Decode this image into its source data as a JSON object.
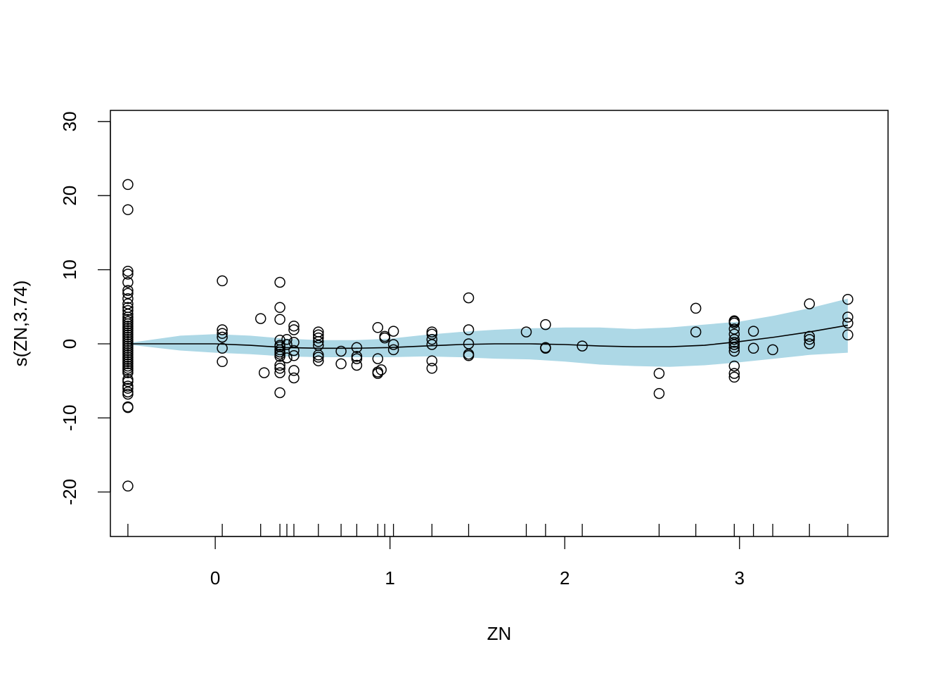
{
  "chart_data": {
    "type": "scatter",
    "title": "",
    "xlabel": "ZN",
    "ylabel": "s(ZN,3.74)",
    "xlim": [
      -0.6,
      3.85
    ],
    "ylim": [
      -26,
      31.5
    ],
    "x_ticks": [
      0,
      1,
      2,
      3
    ],
    "y_ticks": [
      -20,
      -10,
      0,
      10,
      20,
      30
    ],
    "grid": false,
    "legend": "none",
    "colors": {
      "band": "#add8e6",
      "line": "#000000",
      "points": "#000000"
    },
    "smooth_curve": {
      "x": [
        -0.5,
        -0.2,
        0.0,
        0.2,
        0.4,
        0.6,
        0.8,
        1.0,
        1.2,
        1.4,
        1.6,
        1.8,
        2.0,
        2.2,
        2.4,
        2.6,
        2.8,
        3.0,
        3.2,
        3.4,
        3.62
      ],
      "y": [
        0.0,
        0.0,
        0.0,
        -0.2,
        -0.5,
        -0.6,
        -0.6,
        -0.5,
        -0.3,
        -0.1,
        0.0,
        0.0,
        -0.1,
        -0.3,
        -0.4,
        -0.4,
        -0.2,
        0.3,
        0.9,
        1.6,
        2.5
      ]
    },
    "confidence_band": {
      "x": [
        -0.5,
        -0.2,
        0.0,
        0.2,
        0.4,
        0.6,
        0.8,
        1.0,
        1.2,
        1.4,
        1.6,
        1.8,
        2.0,
        2.2,
        2.4,
        2.6,
        2.8,
        3.0,
        3.2,
        3.4,
        3.62
      ],
      "upper": [
        0.1,
        1.1,
        1.3,
        1.1,
        0.7,
        0.5,
        0.5,
        0.7,
        1.2,
        1.6,
        1.9,
        2.1,
        2.2,
        2.2,
        2.0,
        2.2,
        2.6,
        3.0,
        3.8,
        4.8,
        6.1
      ],
      "lower": [
        -0.1,
        -0.9,
        -1.2,
        -1.4,
        -1.7,
        -1.8,
        -1.8,
        -1.8,
        -1.7,
        -1.8,
        -2.0,
        -2.1,
        -2.4,
        -2.8,
        -3.0,
        -3.1,
        -2.9,
        -2.5,
        -2.0,
        -1.5,
        -1.2
      ]
    },
    "rug_x": [
      -0.5,
      0.04,
      0.26,
      0.37,
      0.41,
      0.45,
      0.59,
      0.72,
      0.81,
      0.93,
      0.97,
      1.02,
      1.24,
      1.45,
      1.78,
      1.89,
      2.1,
      2.54,
      2.75,
      2.97,
      3.08,
      3.19,
      3.4,
      3.62
    ],
    "points": {
      "x": [
        -0.5,
        -0.5,
        -0.5,
        -0.5,
        -0.5,
        -0.5,
        -0.5,
        -0.5,
        -0.5,
        -0.5,
        -0.5,
        -0.5,
        -0.5,
        -0.5,
        -0.5,
        -0.5,
        -0.5,
        -0.5,
        -0.5,
        -0.5,
        -0.5,
        -0.5,
        -0.5,
        -0.5,
        -0.5,
        -0.5,
        -0.5,
        -0.5,
        -0.5,
        -0.5,
        -0.5,
        -0.5,
        -0.5,
        -0.5,
        -0.5,
        -0.5,
        -0.5,
        -0.5,
        -0.5,
        -0.5,
        -0.5,
        -0.5,
        -0.5,
        -0.5,
        -0.5,
        -0.5,
        -0.5,
        0.04,
        0.04,
        0.04,
        0.04,
        0.04,
        0.04,
        0.26,
        0.28,
        0.37,
        0.37,
        0.37,
        0.37,
        0.37,
        0.37,
        0.37,
        0.37,
        0.37,
        0.37,
        0.37,
        0.37,
        0.37,
        0.37,
        0.41,
        0.41,
        0.41,
        0.45,
        0.45,
        0.45,
        0.45,
        0.45,
        0.45,
        0.45,
        0.59,
        0.59,
        0.59,
        0.59,
        0.59,
        0.59,
        0.59,
        0.59,
        0.72,
        0.72,
        0.81,
        0.81,
        0.81,
        0.81,
        0.93,
        0.93,
        0.93,
        0.93,
        0.95,
        0.97,
        0.97,
        1.02,
        1.02,
        1.02,
        1.24,
        1.24,
        1.24,
        1.24,
        1.24,
        1.24,
        1.45,
        1.45,
        1.45,
        1.45,
        1.45,
        1.78,
        1.89,
        1.89,
        1.89,
        2.1,
        2.54,
        2.54,
        2.75,
        2.75,
        2.97,
        2.97,
        2.97,
        2.97,
        2.97,
        2.97,
        2.97,
        2.97,
        2.97,
        2.97,
        2.97,
        2.97,
        2.97,
        3.08,
        3.08,
        3.19,
        3.4,
        3.4,
        3.4,
        3.4,
        3.62,
        3.62,
        3.62,
        3.62
      ],
      "y": [
        21.5,
        18.1,
        9.8,
        9.4,
        8.3,
        7.2,
        6.8,
        6.1,
        5.4,
        4.9,
        4.5,
        4.0,
        3.6,
        3.3,
        3.0,
        2.7,
        2.4,
        2.1,
        1.8,
        1.5,
        1.2,
        0.9,
        0.6,
        0.3,
        0.0,
        -0.3,
        -0.6,
        -0.9,
        -1.2,
        -1.5,
        -1.8,
        -2.1,
        -2.4,
        -2.7,
        -3.0,
        -3.3,
        -3.6,
        -3.9,
        -4.8,
        -5.1,
        -5.7,
        -6.0,
        -6.5,
        -6.8,
        -8.5,
        -8.6,
        -19.2,
        8.5,
        1.9,
        1.4,
        0.9,
        -0.6,
        -2.4,
        3.4,
        -3.9,
        8.3,
        4.9,
        3.3,
        0.5,
        -0.2,
        -0.4,
        -0.8,
        -1.1,
        -1.4,
        -1.7,
        -2.9,
        -3.3,
        -3.9,
        -6.6,
        0.6,
        -0.1,
        -1.9,
        2.4,
        1.9,
        0.2,
        -0.9,
        -1.6,
        -3.6,
        -4.6,
        1.6,
        1.2,
        0.8,
        0.3,
        -0.2,
        -1.5,
        -1.8,
        -2.3,
        -1.0,
        -2.7,
        -0.5,
        -1.7,
        -2.0,
        -2.9,
        2.2,
        -2.0,
        -3.8,
        -4.0,
        -3.5,
        1.0,
        0.8,
        1.7,
        -0.1,
        -0.8,
        1.6,
        1.3,
        0.6,
        -0.1,
        -2.3,
        -3.3,
        6.2,
        1.9,
        0.0,
        -1.4,
        -1.6,
        1.6,
        2.6,
        -0.5,
        -0.6,
        -0.3,
        -4.0,
        -6.7,
        4.8,
        1.6,
        3.1,
        2.8,
        2.0,
        1.3,
        0.6,
        0.2,
        -0.1,
        -0.5,
        -1.0,
        -3.0,
        -4.0,
        -4.5,
        3.0,
        1.7,
        -0.6,
        -0.8,
        5.4,
        1.0,
        0.6,
        0.0,
        6.0,
        3.6,
        2.8,
        1.2
      ]
    }
  }
}
